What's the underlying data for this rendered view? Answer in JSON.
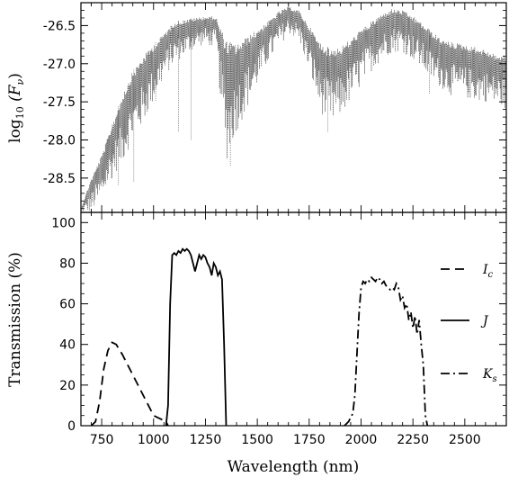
{
  "chart_data": [
    {
      "type": "line",
      "ylabel": "log10 (Fν)",
      "ylabel_parts": {
        "base": "log",
        "sub": "10",
        "open": " (F",
        "var_sub": "ν",
        "close": ")"
      },
      "xlim": [
        650,
        2700
      ],
      "ylim": [
        -28.95,
        -26.2
      ],
      "yticks": [
        -28.5,
        -28.0,
        -27.5,
        -27.0,
        -26.5
      ],
      "ytick_labels": [
        "-28.5",
        "-28.0",
        "-27.5",
        "-27.0",
        "-26.5"
      ],
      "grid": false,
      "series": [
        {
          "style": "dotted-dense",
          "envelope_upper": [
            [
              650,
              -28.9
            ],
            [
              700,
              -28.5
            ],
            [
              750,
              -28.2
            ],
            [
              800,
              -27.8
            ],
            [
              850,
              -27.4
            ],
            [
              900,
              -27.1
            ],
            [
              950,
              -26.9
            ],
            [
              1000,
              -26.75
            ],
            [
              1050,
              -26.6
            ],
            [
              1100,
              -26.45
            ],
            [
              1150,
              -26.42
            ],
            [
              1200,
              -26.4
            ],
            [
              1250,
              -26.38
            ],
            [
              1300,
              -26.38
            ],
            [
              1350,
              -26.7
            ],
            [
              1400,
              -26.75
            ],
            [
              1450,
              -26.65
            ],
            [
              1500,
              -26.55
            ],
            [
              1550,
              -26.45
            ],
            [
              1600,
              -26.32
            ],
            [
              1650,
              -26.25
            ],
            [
              1700,
              -26.3
            ],
            [
              1750,
              -26.5
            ],
            [
              1800,
              -26.72
            ],
            [
              1850,
              -26.8
            ],
            [
              1900,
              -26.78
            ],
            [
              1950,
              -26.68
            ],
            [
              2000,
              -26.55
            ],
            [
              2050,
              -26.45
            ],
            [
              2100,
              -26.35
            ],
            [
              2150,
              -26.28
            ],
            [
              2200,
              -26.3
            ],
            [
              2250,
              -26.38
            ],
            [
              2300,
              -26.48
            ],
            [
              2350,
              -26.6
            ],
            [
              2400,
              -26.7
            ],
            [
              2450,
              -26.72
            ],
            [
              2500,
              -26.75
            ],
            [
              2550,
              -26.78
            ],
            [
              2600,
              -26.82
            ],
            [
              2650,
              -26.88
            ],
            [
              2700,
              -26.9
            ]
          ],
          "envelope_lower": [
            [
              650,
              -28.95
            ],
            [
              700,
              -28.95
            ],
            [
              750,
              -28.8
            ],
            [
              800,
              -28.5
            ],
            [
              850,
              -28.3
            ],
            [
              900,
              -28.0
            ],
            [
              950,
              -27.8
            ],
            [
              1000,
              -27.5
            ],
            [
              1050,
              -27.2
            ],
            [
              1100,
              -27.0
            ],
            [
              1150,
              -26.9
            ],
            [
              1200,
              -26.8
            ],
            [
              1250,
              -26.75
            ],
            [
              1300,
              -26.8
            ],
            [
              1350,
              -28.3
            ],
            [
              1400,
              -27.9
            ],
            [
              1450,
              -27.6
            ],
            [
              1500,
              -27.3
            ],
            [
              1550,
              -27.0
            ],
            [
              1600,
              -26.8
            ],
            [
              1650,
              -26.6
            ],
            [
              1700,
              -26.7
            ],
            [
              1750,
              -27.1
            ],
            [
              1800,
              -27.6
            ],
            [
              1850,
              -27.85
            ],
            [
              1900,
              -27.7
            ],
            [
              1950,
              -27.5
            ],
            [
              2000,
              -27.3
            ],
            [
              2050,
              -27.1
            ],
            [
              2100,
              -26.95
            ],
            [
              2150,
              -26.85
            ],
            [
              2200,
              -26.85
            ],
            [
              2250,
              -26.95
            ],
            [
              2300,
              -27.1
            ],
            [
              2350,
              -27.25
            ],
            [
              2400,
              -27.35
            ],
            [
              2450,
              -27.45
            ],
            [
              2500,
              -27.45
            ],
            [
              2550,
              -27.5
            ],
            [
              2600,
              -27.5
            ],
            [
              2650,
              -27.55
            ],
            [
              2700,
              -27.6
            ]
          ]
        }
      ]
    },
    {
      "type": "line",
      "xlabel": "Wavelength (nm)",
      "ylabel": "Transmission (%)",
      "xlim": [
        650,
        2700
      ],
      "ylim": [
        0,
        105
      ],
      "xticks": [
        750,
        1000,
        1250,
        1500,
        1750,
        2000,
        2250,
        2500
      ],
      "xtick_labels": [
        "750",
        "1000",
        "1250",
        "1500",
        "1750",
        "2000",
        "2250",
        "2500"
      ],
      "yticks": [
        0,
        20,
        40,
        60,
        80,
        100
      ],
      "ytick_labels": [
        "0",
        "20",
        "40",
        "60",
        "80",
        "100"
      ],
      "grid": false,
      "legend_position": "right",
      "series": [
        {
          "name": "Ic",
          "label_main": "I",
          "label_sub": "c",
          "dash": "10,6",
          "points": [
            [
              700,
              0
            ],
            [
              720,
              2
            ],
            [
              740,
              12
            ],
            [
              760,
              28
            ],
            [
              780,
              37
            ],
            [
              800,
              41
            ],
            [
              820,
              40
            ],
            [
              850,
              35
            ],
            [
              900,
              25
            ],
            [
              950,
              15
            ],
            [
              1000,
              5
            ],
            [
              1040,
              3
            ],
            [
              1060,
              2
            ],
            [
              1070,
              0
            ]
          ]
        },
        {
          "name": "J",
          "label_main": "J",
          "label_sub": "",
          "dash": "",
          "points": [
            [
              1060,
              0
            ],
            [
              1070,
              10
            ],
            [
              1080,
              60
            ],
            [
              1090,
              84
            ],
            [
              1100,
              85
            ],
            [
              1110,
              84
            ],
            [
              1120,
              86
            ],
            [
              1130,
              85
            ],
            [
              1140,
              87
            ],
            [
              1150,
              86
            ],
            [
              1160,
              87
            ],
            [
              1170,
              86
            ],
            [
              1180,
              84
            ],
            [
              1190,
              80
            ],
            [
              1200,
              76
            ],
            [
              1210,
              80
            ],
            [
              1220,
              84
            ],
            [
              1230,
              82
            ],
            [
              1240,
              84
            ],
            [
              1250,
              83
            ],
            [
              1260,
              80
            ],
            [
              1270,
              78
            ],
            [
              1280,
              74
            ],
            [
              1290,
              80
            ],
            [
              1300,
              78
            ],
            [
              1310,
              74
            ],
            [
              1320,
              76
            ],
            [
              1330,
              72
            ],
            [
              1340,
              40
            ],
            [
              1350,
              0
            ]
          ]
        },
        {
          "name": "Ks",
          "label_main": "K",
          "label_sub": "s",
          "dash": "10,4,2,4",
          "points": [
            [
              1920,
              0
            ],
            [
              1940,
              2
            ],
            [
              1960,
              6
            ],
            [
              1970,
              15
            ],
            [
              1980,
              35
            ],
            [
              1990,
              55
            ],
            [
              2000,
              68
            ],
            [
              2010,
              71
            ],
            [
              2020,
              70
            ],
            [
              2030,
              72
            ],
            [
              2040,
              71
            ],
            [
              2050,
              73
            ],
            [
              2060,
              72
            ],
            [
              2070,
              71
            ],
            [
              2080,
              73
            ],
            [
              2090,
              72
            ],
            [
              2100,
              70
            ],
            [
              2110,
              71
            ],
            [
              2120,
              69
            ],
            [
              2130,
              68
            ],
            [
              2140,
              67
            ],
            [
              2150,
              68
            ],
            [
              2160,
              67
            ],
            [
              2170,
              70
            ],
            [
              2180,
              68
            ],
            [
              2190,
              62
            ],
            [
              2200,
              64
            ],
            [
              2210,
              58
            ],
            [
              2220,
              60
            ],
            [
              2230,
              52
            ],
            [
              2240,
              56
            ],
            [
              2250,
              48
            ],
            [
              2260,
              54
            ],
            [
              2270,
              45
            ],
            [
              2280,
              52
            ],
            [
              2290,
              40
            ],
            [
              2300,
              30
            ],
            [
              2310,
              5
            ],
            [
              2320,
              0
            ]
          ]
        }
      ]
    }
  ]
}
